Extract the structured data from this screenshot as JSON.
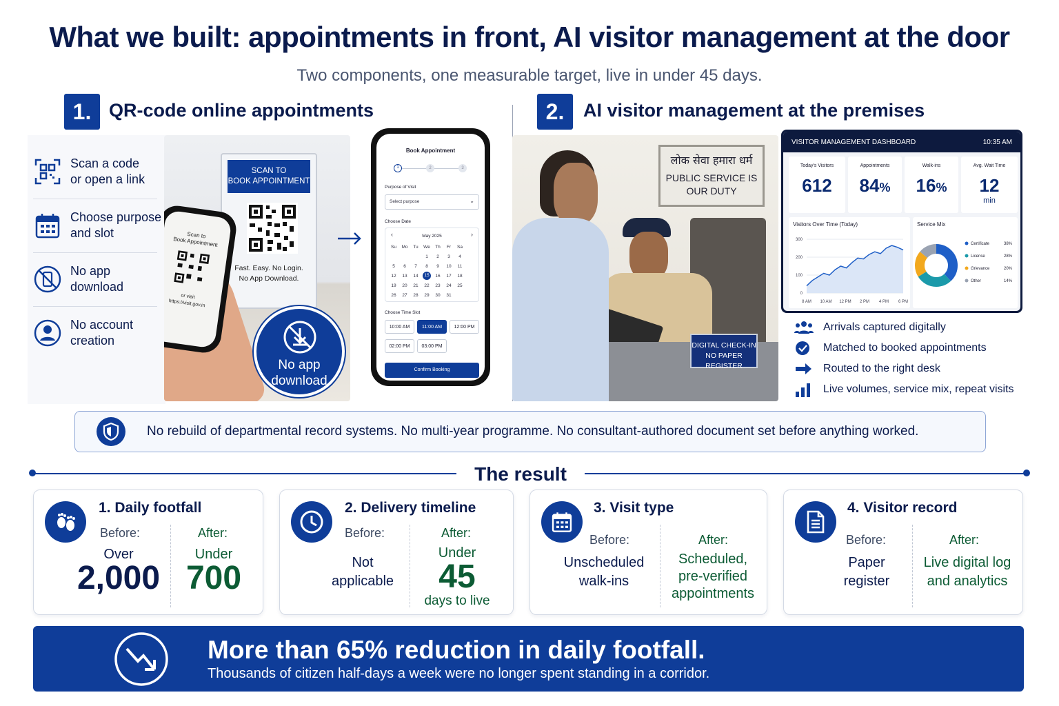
{
  "title": "What we built: appointments in front, AI visitor management at the door",
  "subtitle": "Two components, one measurable target, live in under 45 days.",
  "section1": {
    "number": "1.",
    "heading": "QR-code online appointments",
    "features": [
      {
        "icon": "qr-scan-icon",
        "line1": "Scan a code",
        "line2": "or open a link"
      },
      {
        "icon": "calendar-icon",
        "line1": "Choose purpose",
        "line2": "and slot"
      },
      {
        "icon": "no-phone-icon",
        "line1": "No app",
        "line2": "download"
      },
      {
        "icon": "user-icon",
        "line1": "No account",
        "line2": "creation"
      }
    ],
    "stand": {
      "header_line1": "SCAN TO",
      "header_line2": "BOOK APPOINTMENT",
      "footer_line1": "Fast. Easy. No Login.",
      "footer_line2": "No App Download."
    },
    "hand_phone": {
      "line1": "Scan to",
      "line2": "Book Appointment",
      "or_visit": "or visit",
      "url": "https://visit.gov.in"
    },
    "badge": {
      "line1": "No app",
      "line2": "download"
    },
    "booking": {
      "title": "Book Appointment",
      "steps": [
        "1",
        "2",
        "3"
      ],
      "purpose_label": "Purpose of Visit",
      "purpose_placeholder": "Select purpose",
      "date_label": "Choose Date",
      "month": "May 2025",
      "weekdays": [
        "Su",
        "Mo",
        "Tu",
        "We",
        "Th",
        "Fr",
        "Sa"
      ],
      "weeks": [
        [
          "",
          "",
          "",
          "1",
          "2",
          "3",
          "4"
        ],
        [
          "5",
          "6",
          "7",
          "8",
          "9",
          "10",
          "11"
        ],
        [
          "12",
          "13",
          "14",
          "15",
          "16",
          "17",
          "18"
        ],
        [
          "19",
          "20",
          "21",
          "22",
          "23",
          "24",
          "25"
        ],
        [
          "26",
          "27",
          "28",
          "29",
          "30",
          "31",
          ""
        ]
      ],
      "selected_day": "15",
      "time_label": "Choose Time Slot",
      "slots": [
        "10:00 AM",
        "11:00 AM",
        "12:00 PM",
        "02:00 PM",
        "03:00 PM"
      ],
      "selected_slot": "11:00 AM",
      "confirm": "Confirm Booking"
    }
  },
  "section2": {
    "number": "2.",
    "heading": "AI visitor management at the premises",
    "wall_sign": {
      "hindi": "लोक सेवा हमारा धर्म",
      "line1": "PUBLIC SERVICE IS",
      "line2": "OUR DUTY"
    },
    "desk_sign": {
      "line1": "DIGITAL CHECK-IN",
      "line2": "NO PAPER REGISTER"
    },
    "dashboard": {
      "title": "VISITOR MANAGEMENT DASHBOARD",
      "time": "10:35 AM",
      "kpis": [
        {
          "label": "Today's Visitors",
          "value": "612",
          "unit": ""
        },
        {
          "label": "Appointments",
          "value": "84",
          "unit": "%"
        },
        {
          "label": "Walk-ins",
          "value": "16",
          "unit": "%"
        },
        {
          "label": "Avg. Wait Time",
          "value": "12",
          "unit": "min"
        }
      ],
      "line_chart": {
        "title": "Visitors Over Time (Today)",
        "y_ticks": [
          "300",
          "200",
          "100",
          "0"
        ],
        "x_ticks": [
          "8 AM",
          "10 AM",
          "12 PM",
          "2 PM",
          "4 PM",
          "6 PM"
        ],
        "ylim": [
          0,
          300
        ],
        "points": [
          40,
          70,
          90,
          110,
          100,
          130,
          150,
          140,
          170,
          195,
          190,
          215,
          230,
          220,
          250,
          265,
          255,
          240
        ]
      },
      "donut": {
        "title": "Service Mix",
        "items": [
          {
            "label": "Certificate",
            "value": 38,
            "display": "38%",
            "color": "#1f5fc7"
          },
          {
            "label": "License",
            "value": 28,
            "display": "28%",
            "color": "#1b9aaa"
          },
          {
            "label": "Grievance",
            "value": 20,
            "display": "20%",
            "color": "#f2a81d"
          },
          {
            "label": "Other",
            "value": 14,
            "display": "14%",
            "color": "#9aa3b2"
          }
        ]
      }
    },
    "bullets": [
      {
        "icon": "people-icon",
        "text": "Arrivals captured digitally"
      },
      {
        "icon": "check-circle-icon",
        "text": "Matched to booked appointments"
      },
      {
        "icon": "route-arrow-icon",
        "text": "Routed to the right desk"
      },
      {
        "icon": "bar-chart-icon",
        "text": "Live volumes, service mix, repeat visits"
      }
    ]
  },
  "note": "No rebuild of departmental record systems. No multi-year programme. No consultant-authored document set before anything worked.",
  "result_heading": "The result",
  "results": [
    {
      "title": "1. Daily footfall",
      "before_label": "Before:",
      "after_label": "After:",
      "before_line1": "Over",
      "before_big": "2,000",
      "after_line1": "Under",
      "after_big": "700"
    },
    {
      "title": "2. Delivery timeline",
      "before_label": "Before:",
      "after_label": "After:",
      "before_line1": "Not",
      "before_line2": "applicable",
      "after_line1": "Under",
      "after_big": "45",
      "after_line3": "days to live"
    },
    {
      "title": "3. Visit type",
      "before_label": "Before:",
      "after_label": "After:",
      "before_line1": "Unscheduled",
      "before_line2": "walk-ins",
      "after_line1": "Scheduled,",
      "after_line2": "pre-verified",
      "after_line3": "appointments"
    },
    {
      "title": "4. Visitor record",
      "before_label": "Before:",
      "after_label": "After:",
      "before_line1": "Paper",
      "before_line2": "register",
      "after_line1": "Live digital log",
      "after_line2": "and analytics"
    }
  ],
  "banner": {
    "headline": "More than 65% reduction in daily footfall.",
    "subline": "Thousands of citizen half-days a week were no longer spent standing in a corridor."
  },
  "colors": {
    "navy": "#0f3d99",
    "dark_text": "#0b1b4d",
    "after_green": "#0c5b34"
  }
}
